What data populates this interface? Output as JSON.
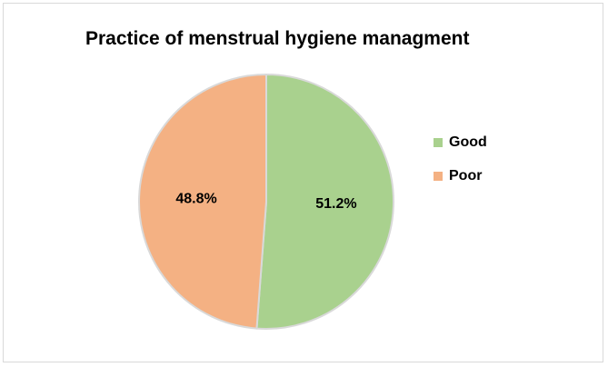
{
  "chart_data": {
    "type": "pie",
    "title": "Practice of menstrual hygiene managment",
    "slices": [
      {
        "label": "Good",
        "value": 51.2,
        "display": "51.2%",
        "color": "#a9d18e"
      },
      {
        "label": "Poor",
        "value": 48.8,
        "display": "48.8%",
        "color": "#f4b183"
      }
    ],
    "legend_position": "right",
    "border_color": "#d9d9d9"
  }
}
